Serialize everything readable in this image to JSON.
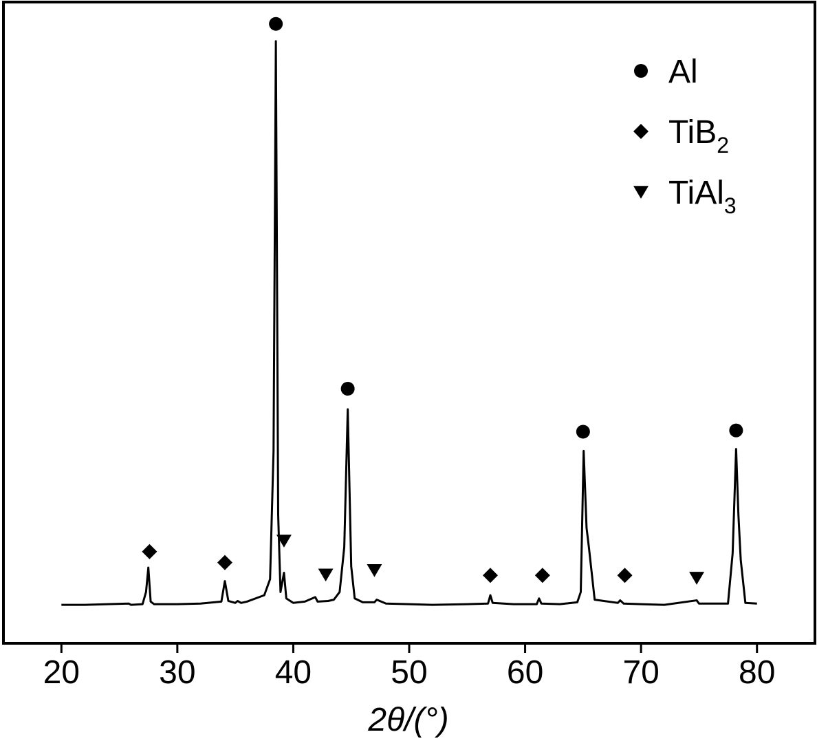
{
  "chart_data": {
    "type": "line",
    "x_label": "2θ/(°)",
    "color": "#000000",
    "xlim": [
      15,
      85
    ],
    "ylim": [
      0,
      100
    ],
    "xticks": [
      20,
      30,
      40,
      50,
      60,
      70,
      80
    ],
    "legend": "upper right",
    "x": [
      20,
      22,
      24,
      25.8,
      26,
      27,
      27.3,
      27.5,
      27.7,
      28,
      30,
      32,
      33.8,
      34.1,
      34.4,
      35,
      35.2,
      35.5,
      36,
      37.5,
      38,
      38.3,
      38.5,
      38.7,
      38.9,
      39.2,
      39.4,
      40,
      41,
      41.9,
      42.1,
      43,
      43.5,
      44,
      44.4,
      44.7,
      45,
      45.3,
      46,
      47,
      47.2,
      48,
      50,
      52,
      55,
      56.8,
      57,
      57.2,
      59,
      61,
      61.2,
      61.4,
      63,
      64.5,
      64.8,
      65.05,
      65.3,
      65.5,
      66,
      68,
      68.2,
      68.5,
      70,
      72,
      74.8,
      75,
      77.5,
      77.9,
      78.2,
      78.4,
      78.6,
      79,
      80
    ],
    "values": [
      6,
      6,
      6.1,
      6.2,
      6,
      6.1,
      8,
      11.8,
      6.5,
      6.1,
      6.1,
      6.2,
      6.5,
      9.7,
      6.6,
      6.3,
      6.6,
      6.3,
      6.5,
      7.5,
      10,
      30,
      93.9,
      20,
      8,
      11,
      7,
      6.3,
      6.5,
      7.2,
      6.5,
      6.6,
      6.8,
      8,
      15,
      36.5,
      12,
      7,
      6.4,
      6.4,
      6.8,
      6.2,
      6.1,
      6.0,
      6.1,
      6.2,
      7.5,
      6.3,
      6.1,
      6.1,
      7,
      6.2,
      6.1,
      6.4,
      8,
      30,
      18,
      15,
      6.8,
      6.3,
      6.7,
      6.2,
      6.1,
      6.0,
      6.7,
      6.2,
      6.2,
      14,
      30.3,
      20,
      13,
      6.3,
      6.2
    ],
    "phases": [
      {
        "name": "Al",
        "marker": "circle",
        "peaks": {
          "x": [
            38.5,
            44.7,
            65.0,
            78.2
          ],
          "y": [
            96.6,
            39.7,
            33,
            33.2
          ]
        }
      },
      {
        "name": "TiB",
        "sub": "2",
        "marker": "diamond",
        "peaks": {
          "x": [
            27.6,
            34.1,
            57.0,
            61.5,
            68.6
          ],
          "y": [
            14.3,
            12.6,
            10.6,
            10.6,
            10.6
          ]
        }
      },
      {
        "name": "TiAl",
        "sub": "3",
        "marker": "triangle-down",
        "peaks": {
          "x": [
            39.2,
            42.8,
            47.0,
            74.8
          ],
          "y": [
            16,
            10.7,
            11.4,
            10.2
          ]
        }
      }
    ]
  }
}
